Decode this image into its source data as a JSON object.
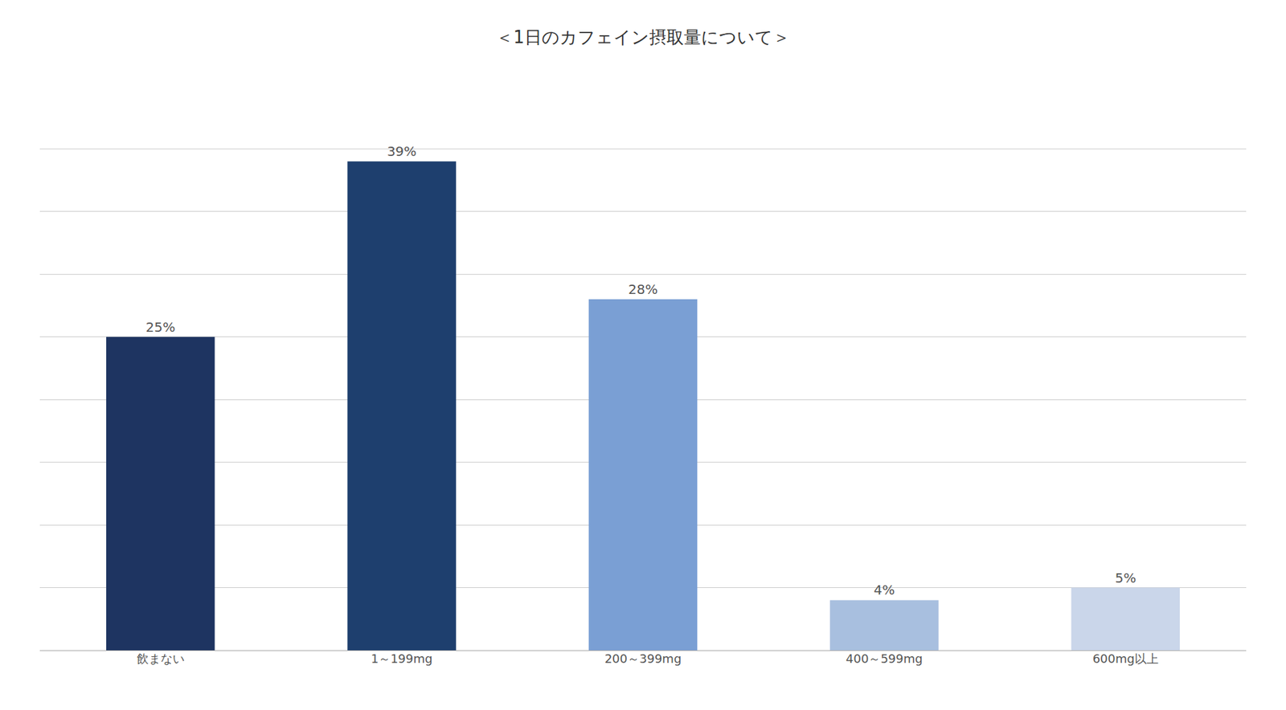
{
  "chart_data": {
    "type": "bar",
    "title": "＜1日のカフェイン摂取量について＞",
    "categories": [
      "飲まない",
      "1～199mg",
      "200～399mg",
      "400～599mg",
      "600mg以上"
    ],
    "values": [
      25,
      39,
      28,
      4,
      5
    ],
    "value_labels": [
      "25%",
      "39%",
      "28%",
      "4%",
      "5%"
    ],
    "colors": [
      "#1e3461",
      "#1e3f6e",
      "#7a9fd4",
      "#a8bfdf",
      "#cad6ea"
    ],
    "ylim": [
      0,
      45
    ],
    "yticks": [
      0,
      5,
      10,
      15,
      20,
      25,
      30,
      35,
      40,
      45
    ],
    "grid": true,
    "data_labels": true,
    "tick_labels": "x"
  }
}
